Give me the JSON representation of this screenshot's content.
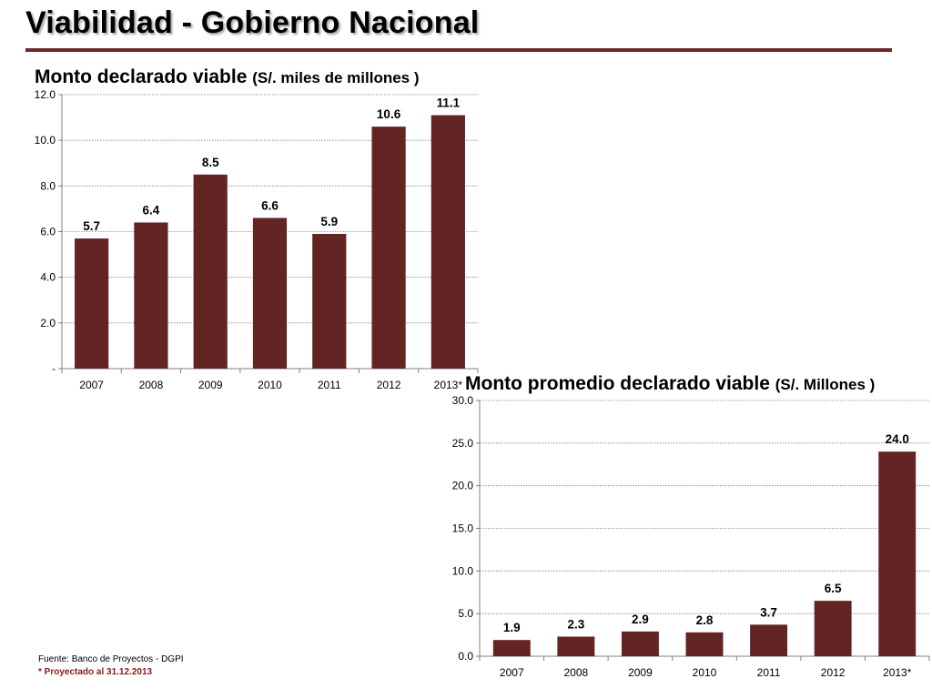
{
  "page": {
    "title": "Viabilidad - Gobierno Nacional",
    "accent_color": "#6B2A2A"
  },
  "footer": {
    "source": "Fuente: Banco de Proyectos - DGPI",
    "projection_note": "* Proyectado al 31.12.2013",
    "projection_color": "#8B1A1A"
  },
  "chart_data": [
    {
      "type": "bar",
      "title": "Monto declarado viable",
      "title_unit": "(S/. miles de millones )",
      "categories": [
        "2007",
        "2008",
        "2009",
        "2010",
        "2011",
        "2012",
        "2013*"
      ],
      "values": [
        5.7,
        6.4,
        8.5,
        6.6,
        5.9,
        10.6,
        11.1
      ],
      "data_labels": [
        "5.7",
        "6.4",
        "8.5",
        "6.6",
        "5.9",
        "10.6",
        "11.1"
      ],
      "ylim": [
        0,
        12
      ],
      "yticks": [
        0,
        2,
        4,
        6,
        8,
        10,
        12
      ],
      "ytick_labels": [
        "-",
        "2.0",
        "4.0",
        "6.0",
        "8.0",
        "10.0",
        "12.0"
      ],
      "grid": true,
      "bar_color": "#632523"
    },
    {
      "type": "bar",
      "title": "Monto promedio declarado viable",
      "title_unit": "(S/. Millones )",
      "categories": [
        "2007",
        "2008",
        "2009",
        "2010",
        "2011",
        "2012",
        "2013*"
      ],
      "values": [
        1.9,
        2.3,
        2.9,
        2.8,
        3.7,
        6.5,
        24.0
      ],
      "data_labels": [
        "1.9",
        "2.3",
        "2.9",
        "2.8",
        "3.7",
        "6.5",
        "24.0"
      ],
      "ylim": [
        0,
        30
      ],
      "yticks": [
        0,
        5,
        10,
        15,
        20,
        25,
        30
      ],
      "ytick_labels": [
        "0.0",
        "5.0",
        "10.0",
        "15.0",
        "20.0",
        "25.0",
        "30.0"
      ],
      "grid": true,
      "bar_color": "#632523"
    }
  ]
}
